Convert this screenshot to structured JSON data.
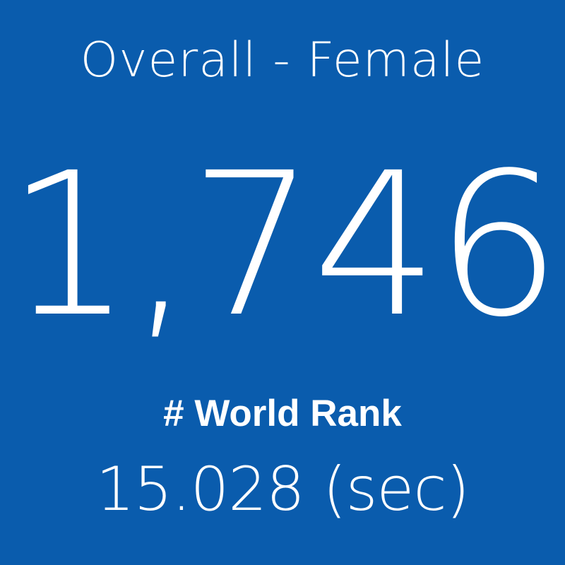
{
  "tile": {
    "category": "Overall - Female",
    "rank_value": "1,746",
    "rank_label": "# World Rank",
    "time": "15.028 (sec)"
  },
  "colors": {
    "background": "#0a5cad",
    "text": "#ffffff"
  }
}
